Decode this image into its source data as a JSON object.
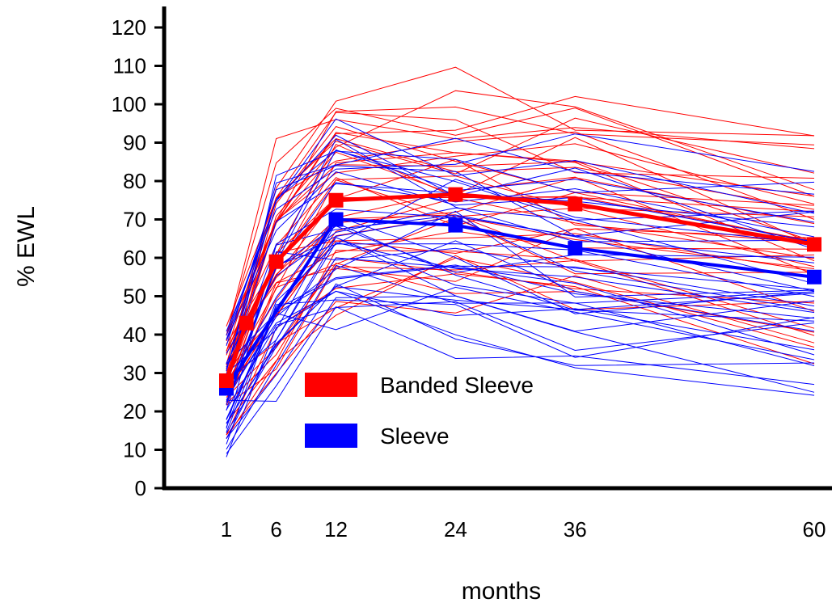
{
  "chart_data": {
    "type": "line",
    "title": "",
    "xlabel": "months",
    "ylabel": "% EWL",
    "x_ticks": [
      1,
      6,
      12,
      24,
      36,
      60
    ],
    "x_tick_labels": [
      "1",
      "6",
      "12",
      "24",
      "36",
      "60"
    ],
    "y_ticks": [
      0,
      10,
      20,
      30,
      40,
      50,
      60,
      70,
      80,
      90,
      100,
      110,
      120
    ],
    "y_tick_labels": [
      "0",
      "10",
      "20",
      "30",
      "40",
      "50",
      "60",
      "70",
      "80",
      "90",
      "100",
      "110",
      "120"
    ],
    "xlim": [
      1,
      60
    ],
    "ylim": [
      0,
      120
    ],
    "grid": false,
    "legend_position": "lower-center",
    "series": [
      {
        "name": "Banded Sleeve",
        "color": "#ff0000",
        "x": [
          1,
          3,
          6,
          12,
          24,
          36,
          60
        ],
        "values": [
          28,
          43,
          59,
          75,
          76.5,
          74,
          63.5
        ]
      },
      {
        "name": "Sleeve",
        "color": "#0000ff",
        "x": [
          1,
          12,
          24,
          36,
          60
        ],
        "values": [
          26,
          70,
          68.5,
          62.5,
          55
        ]
      }
    ]
  }
}
